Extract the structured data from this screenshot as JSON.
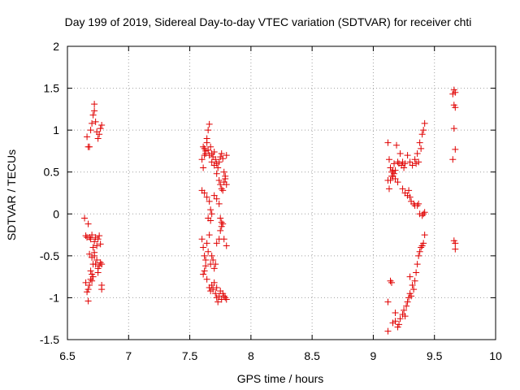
{
  "chart_data": {
    "type": "scatter",
    "title": "Day 199 of 2019, Sidereal Day-to-day VTEC variation (SDTVAR) for receiver chti",
    "xlabel": "GPS time / hours",
    "ylabel": "SDTVAR / TECUs",
    "xlim": [
      6.5,
      10
    ],
    "ylim": [
      -1.5,
      2
    ],
    "xticks": [
      6.5,
      7,
      7.5,
      8,
      8.5,
      9,
      9.5,
      10
    ],
    "xtick_labels": [
      "6.5",
      "7",
      "7.5",
      "8",
      "8.5",
      "9",
      "9.5",
      "10"
    ],
    "yticks": [
      -1.5,
      -1,
      -0.5,
      0,
      0.5,
      1,
      1.5,
      2
    ],
    "ytick_labels": [
      "-1.5",
      "-1",
      "-0.5",
      "0",
      "0.5",
      "1",
      "1.5",
      "2"
    ],
    "grid": true,
    "marker": "+",
    "marker_color": "#e00000",
    "series": [
      {
        "name": "SDTVAR",
        "points": [
          [
            6.66,
            0.92
          ],
          [
            6.67,
            0.8
          ],
          [
            6.68,
            0.8
          ],
          [
            6.69,
            1.0
          ],
          [
            6.7,
            1.08
          ],
          [
            6.71,
            1.18
          ],
          [
            6.72,
            1.23
          ],
          [
            6.72,
            1.31
          ],
          [
            6.73,
            1.1
          ],
          [
            6.74,
            0.98
          ],
          [
            6.75,
            0.9
          ],
          [
            6.76,
            0.95
          ],
          [
            6.77,
            1.02
          ],
          [
            6.78,
            1.06
          ],
          [
            6.64,
            -0.05
          ],
          [
            6.65,
            -0.26
          ],
          [
            6.66,
            -0.28
          ],
          [
            6.67,
            -0.12
          ],
          [
            6.68,
            -0.28
          ],
          [
            6.69,
            -0.3
          ],
          [
            6.7,
            -0.25
          ],
          [
            6.71,
            -0.4
          ],
          [
            6.72,
            -0.33
          ],
          [
            6.73,
            -0.28
          ],
          [
            6.74,
            -0.38
          ],
          [
            6.75,
            -0.3
          ],
          [
            6.76,
            -0.26
          ],
          [
            6.77,
            -0.36
          ],
          [
            6.68,
            -0.48
          ],
          [
            6.7,
            -0.52
          ],
          [
            6.72,
            -0.46
          ],
          [
            6.73,
            -0.6
          ],
          [
            6.74,
            -0.55
          ],
          [
            6.75,
            -0.65
          ],
          [
            6.76,
            -0.62
          ],
          [
            6.77,
            -0.58
          ],
          [
            6.78,
            -0.6
          ],
          [
            6.72,
            -0.5
          ],
          [
            6.71,
            -0.6
          ],
          [
            6.69,
            -0.68
          ],
          [
            6.7,
            -0.72
          ],
          [
            6.65,
            -0.82
          ],
          [
            6.66,
            -0.93
          ],
          [
            6.67,
            -0.9
          ],
          [
            6.68,
            -0.85
          ],
          [
            6.69,
            -0.78
          ],
          [
            6.7,
            -0.8
          ],
          [
            6.71,
            -0.75
          ],
          [
            6.67,
            -1.04
          ],
          [
            6.78,
            -0.85
          ],
          [
            6.78,
            -0.9
          ],
          [
            6.75,
            -0.7
          ],
          [
            7.6,
            0.65
          ],
          [
            7.61,
            0.55
          ],
          [
            7.62,
            0.7
          ],
          [
            7.63,
            0.75
          ],
          [
            7.64,
            0.9
          ],
          [
            7.65,
            1.0
          ],
          [
            7.66,
            1.07
          ],
          [
            7.67,
            0.8
          ],
          [
            7.68,
            0.72
          ],
          [
            7.69,
            0.68
          ],
          [
            7.7,
            0.74
          ],
          [
            7.71,
            0.65
          ],
          [
            7.72,
            0.6
          ],
          [
            7.73,
            0.55
          ],
          [
            7.74,
            0.62
          ],
          [
            7.75,
            0.68
          ],
          [
            7.76,
            0.72
          ],
          [
            7.77,
            0.66
          ],
          [
            7.78,
            0.5
          ],
          [
            7.79,
            0.42
          ],
          [
            7.8,
            0.35
          ],
          [
            7.61,
            0.8
          ],
          [
            7.62,
            0.78
          ],
          [
            7.63,
            0.72
          ],
          [
            7.64,
            0.85
          ],
          [
            7.65,
            0.76
          ],
          [
            7.66,
            0.7
          ],
          [
            7.68,
            0.62
          ],
          [
            7.7,
            0.58
          ],
          [
            7.72,
            0.48
          ],
          [
            7.74,
            0.4
          ],
          [
            7.75,
            0.35
          ],
          [
            7.76,
            0.3
          ],
          [
            7.77,
            0.28
          ],
          [
            7.78,
            0.38
          ],
          [
            7.79,
            0.45
          ],
          [
            7.8,
            0.7
          ],
          [
            7.6,
            0.28
          ],
          [
            7.62,
            0.25
          ],
          [
            7.64,
            0.2
          ],
          [
            7.66,
            0.15
          ],
          [
            7.67,
            0.05
          ],
          [
            7.68,
            0.0
          ],
          [
            7.7,
            0.22
          ],
          [
            7.72,
            0.18
          ],
          [
            7.74,
            0.12
          ],
          [
            7.65,
            -0.05
          ],
          [
            7.67,
            -0.08
          ],
          [
            7.75,
            -0.05
          ],
          [
            7.76,
            -0.1
          ],
          [
            7.77,
            -0.12
          ],
          [
            7.6,
            -0.3
          ],
          [
            7.61,
            -0.4
          ],
          [
            7.62,
            -0.5
          ],
          [
            7.63,
            -0.55
          ],
          [
            7.64,
            -0.35
          ],
          [
            7.65,
            -0.45
          ],
          [
            7.66,
            -0.25
          ],
          [
            7.67,
            -0.6
          ],
          [
            7.68,
            -0.5
          ],
          [
            7.69,
            -0.55
          ],
          [
            7.7,
            -0.65
          ],
          [
            7.71,
            -0.6
          ],
          [
            7.72,
            -0.35
          ],
          [
            7.74,
            -0.3
          ],
          [
            7.75,
            -0.2
          ],
          [
            7.76,
            -0.15
          ],
          [
            7.78,
            -0.3
          ],
          [
            7.8,
            -0.38
          ],
          [
            7.61,
            -0.72
          ],
          [
            7.62,
            -0.68
          ],
          [
            7.63,
            -0.62
          ],
          [
            7.64,
            -0.78
          ],
          [
            7.66,
            -0.88
          ],
          [
            7.67,
            -0.92
          ],
          [
            7.68,
            -0.85
          ],
          [
            7.69,
            -0.9
          ],
          [
            7.7,
            -0.82
          ],
          [
            7.71,
            -0.95
          ],
          [
            7.72,
            -1.0
          ],
          [
            7.73,
            -1.05
          ],
          [
            7.74,
            -0.98
          ],
          [
            7.75,
            -0.92
          ],
          [
            7.76,
            -1.02
          ],
          [
            7.77,
            -0.95
          ],
          [
            7.78,
            -0.98
          ],
          [
            7.79,
            -1.0
          ],
          [
            7.8,
            -1.02
          ],
          [
            7.72,
            -0.88
          ],
          [
            9.12,
            0.85
          ],
          [
            9.13,
            0.65
          ],
          [
            9.14,
            0.55
          ],
          [
            9.15,
            0.5
          ],
          [
            9.16,
            0.45
          ],
          [
            9.17,
            0.6
          ],
          [
            9.18,
            0.52
          ],
          [
            9.19,
            0.82
          ],
          [
            9.2,
            0.62
          ],
          [
            9.21,
            0.6
          ],
          [
            9.22,
            0.72
          ],
          [
            9.23,
            0.58
          ],
          [
            9.24,
            0.62
          ],
          [
            9.25,
            0.55
          ],
          [
            9.26,
            0.6
          ],
          [
            9.28,
            0.7
          ],
          [
            9.3,
            0.62
          ],
          [
            9.32,
            0.58
          ],
          [
            9.34,
            0.65
          ],
          [
            9.36,
            0.72
          ],
          [
            9.38,
            0.85
          ],
          [
            9.4,
            0.95
          ],
          [
            9.42,
            1.08
          ],
          [
            9.41,
            1.0
          ],
          [
            9.39,
            0.78
          ],
          [
            9.37,
            0.62
          ],
          [
            9.35,
            0.6
          ],
          [
            9.12,
            0.4
          ],
          [
            9.13,
            0.3
          ],
          [
            9.14,
            0.4
          ],
          [
            9.15,
            0.45
          ],
          [
            9.16,
            0.52
          ],
          [
            9.17,
            0.48
          ],
          [
            9.18,
            0.42
          ],
          [
            9.2,
            0.38
          ],
          [
            9.24,
            0.3
          ],
          [
            9.26,
            0.25
          ],
          [
            9.28,
            0.22
          ],
          [
            9.29,
            0.28
          ],
          [
            9.3,
            0.2
          ],
          [
            9.31,
            0.15
          ],
          [
            9.33,
            0.12
          ],
          [
            9.34,
            0.1
          ],
          [
            9.36,
            0.1
          ],
          [
            9.37,
            0.12
          ],
          [
            9.38,
            0.0
          ],
          [
            9.4,
            -0.02
          ],
          [
            9.42,
            0.02
          ],
          [
            9.41,
            0.0
          ],
          [
            9.12,
            -1.05
          ],
          [
            9.14,
            -0.8
          ],
          [
            9.15,
            -0.82
          ],
          [
            9.12,
            -1.4
          ],
          [
            9.16,
            -1.3
          ],
          [
            9.18,
            -1.28
          ],
          [
            9.2,
            -1.35
          ],
          [
            9.22,
            -1.25
          ],
          [
            9.24,
            -1.2
          ],
          [
            9.25,
            -1.15
          ],
          [
            9.27,
            -1.1
          ],
          [
            9.28,
            -1.05
          ],
          [
            9.29,
            -1.0
          ],
          [
            9.3,
            -0.95
          ],
          [
            9.31,
            -0.98
          ],
          [
            9.32,
            -0.85
          ],
          [
            9.34,
            -0.8
          ],
          [
            9.35,
            -0.7
          ],
          [
            9.36,
            -0.6
          ],
          [
            9.37,
            -0.5
          ],
          [
            9.38,
            -0.45
          ],
          [
            9.39,
            -0.4
          ],
          [
            9.4,
            -0.38
          ],
          [
            9.41,
            -0.35
          ],
          [
            9.42,
            -0.25
          ],
          [
            9.3,
            -0.75
          ],
          [
            9.33,
            -0.9
          ],
          [
            9.18,
            -1.18
          ],
          [
            9.26,
            -1.22
          ],
          [
            9.21,
            -1.32
          ],
          [
            9.66,
            1.48
          ],
          [
            9.67,
            1.45
          ],
          [
            9.65,
            1.43
          ],
          [
            9.66,
            1.3
          ],
          [
            9.67,
            1.27
          ],
          [
            9.66,
            1.02
          ],
          [
            9.67,
            0.77
          ],
          [
            9.65,
            0.65
          ],
          [
            9.66,
            -0.32
          ],
          [
            9.67,
            -0.35
          ],
          [
            9.67,
            -0.42
          ]
        ]
      }
    ]
  }
}
